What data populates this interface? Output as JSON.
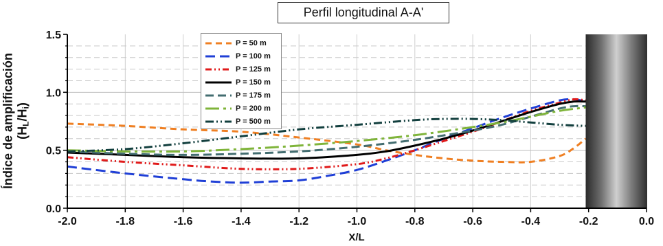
{
  "chart_data": {
    "type": "line",
    "title": "Perfil longitudinal A-A'",
    "xlabel": "X/L",
    "ylabel_main": "Índice de amplificación",
    "ylabel_paren_open": "(H",
    "ylabel_sub1": "L",
    "ylabel_slash": "/H",
    "ylabel_sub2": "i",
    "ylabel_paren_close": ")",
    "xlim": [
      -2.0,
      0.0
    ],
    "ylim": [
      0.0,
      1.5
    ],
    "x_ticks": [
      "-2.0",
      "-1.8",
      "-1.6",
      "-1.4",
      "-1.2",
      "-1.0",
      "-0.8",
      "-0.6",
      "-0.4",
      "-0.2",
      "0.0"
    ],
    "y_ticks": [
      "0.0",
      "0.5",
      "1.0",
      "1.5"
    ],
    "grid": true,
    "legend_position": "top-left",
    "structure": "vertical gray wall from X/L = -0.21 to 0.0",
    "series": [
      {
        "name": "P = 50 m",
        "color": "#ef7f22",
        "dash": "9,6",
        "points": [
          [
            -2.0,
            0.73
          ],
          [
            -1.8,
            0.71
          ],
          [
            -1.6,
            0.68
          ],
          [
            -1.4,
            0.66
          ],
          [
            -1.2,
            0.61
          ],
          [
            -1.0,
            0.55
          ],
          [
            -0.9,
            0.5
          ],
          [
            -0.8,
            0.46
          ],
          [
            -0.7,
            0.43
          ],
          [
            -0.6,
            0.41
          ],
          [
            -0.5,
            0.4
          ],
          [
            -0.4,
            0.4
          ],
          [
            -0.3,
            0.45
          ],
          [
            -0.25,
            0.52
          ],
          [
            -0.21,
            0.6
          ]
        ]
      },
      {
        "name": "P = 100 m",
        "color": "#1f3fd6",
        "dash": "14,7",
        "points": [
          [
            -2.0,
            0.36
          ],
          [
            -1.8,
            0.3
          ],
          [
            -1.6,
            0.25
          ],
          [
            -1.5,
            0.23
          ],
          [
            -1.4,
            0.22
          ],
          [
            -1.3,
            0.23
          ],
          [
            -1.2,
            0.24
          ],
          [
            -1.1,
            0.28
          ],
          [
            -1.0,
            0.33
          ],
          [
            -0.9,
            0.41
          ],
          [
            -0.8,
            0.5
          ],
          [
            -0.7,
            0.6
          ],
          [
            -0.6,
            0.69
          ],
          [
            -0.5,
            0.78
          ],
          [
            -0.4,
            0.86
          ],
          [
            -0.3,
            0.93
          ],
          [
            -0.25,
            0.94
          ],
          [
            -0.21,
            0.92
          ]
        ]
      },
      {
        "name": "P = 125 m",
        "color": "#e01a1a",
        "dash": "9,4,2,4,2,4",
        "points": [
          [
            -2.0,
            0.44
          ],
          [
            -1.8,
            0.4
          ],
          [
            -1.6,
            0.37
          ],
          [
            -1.4,
            0.34
          ],
          [
            -1.2,
            0.34
          ],
          [
            -1.0,
            0.38
          ],
          [
            -0.9,
            0.43
          ],
          [
            -0.8,
            0.5
          ],
          [
            -0.7,
            0.58
          ],
          [
            -0.6,
            0.66
          ],
          [
            -0.5,
            0.75
          ],
          [
            -0.4,
            0.84
          ],
          [
            -0.3,
            0.91
          ],
          [
            -0.25,
            0.94
          ],
          [
            -0.21,
            0.93
          ]
        ]
      },
      {
        "name": "P = 150 m",
        "color": "#000000",
        "dash": "none",
        "points": [
          [
            -2.0,
            0.48
          ],
          [
            -1.8,
            0.46
          ],
          [
            -1.6,
            0.44
          ],
          [
            -1.4,
            0.43
          ],
          [
            -1.2,
            0.43
          ],
          [
            -1.0,
            0.46
          ],
          [
            -0.9,
            0.49
          ],
          [
            -0.8,
            0.54
          ],
          [
            -0.7,
            0.6
          ],
          [
            -0.6,
            0.67
          ],
          [
            -0.5,
            0.75
          ],
          [
            -0.4,
            0.83
          ],
          [
            -0.3,
            0.9
          ],
          [
            -0.25,
            0.92
          ],
          [
            -0.21,
            0.92
          ]
        ]
      },
      {
        "name": "P = 175 m",
        "color": "#436d70",
        "dash": "12,6",
        "points": [
          [
            -2.0,
            0.49
          ],
          [
            -1.8,
            0.47
          ],
          [
            -1.6,
            0.46
          ],
          [
            -1.4,
            0.47
          ],
          [
            -1.2,
            0.49
          ],
          [
            -1.0,
            0.53
          ],
          [
            -0.8,
            0.59
          ],
          [
            -0.6,
            0.67
          ],
          [
            -0.5,
            0.72
          ],
          [
            -0.4,
            0.79
          ],
          [
            -0.3,
            0.86
          ],
          [
            -0.25,
            0.88
          ],
          [
            -0.21,
            0.88
          ]
        ]
      },
      {
        "name": "P = 200 m",
        "color": "#7fb43a",
        "dash": "20,6,4,6",
        "points": [
          [
            -2.0,
            0.5
          ],
          [
            -1.8,
            0.49
          ],
          [
            -1.6,
            0.49
          ],
          [
            -1.4,
            0.51
          ],
          [
            -1.2,
            0.54
          ],
          [
            -1.0,
            0.58
          ],
          [
            -0.8,
            0.63
          ],
          [
            -0.6,
            0.7
          ],
          [
            -0.5,
            0.74
          ],
          [
            -0.4,
            0.79
          ],
          [
            -0.3,
            0.84
          ],
          [
            -0.21,
            0.87
          ]
        ]
      },
      {
        "name": "P = 500 m",
        "color": "#123f3e",
        "dash": "12,4,2,4,2,4",
        "points": [
          [
            -2.0,
            0.49
          ],
          [
            -1.8,
            0.51
          ],
          [
            -1.6,
            0.56
          ],
          [
            -1.4,
            0.62
          ],
          [
            -1.2,
            0.68
          ],
          [
            -1.0,
            0.72
          ],
          [
            -0.8,
            0.76
          ],
          [
            -0.7,
            0.77
          ],
          [
            -0.6,
            0.77
          ],
          [
            -0.5,
            0.76
          ],
          [
            -0.4,
            0.74
          ],
          [
            -0.3,
            0.72
          ],
          [
            -0.21,
            0.71
          ]
        ]
      }
    ]
  }
}
